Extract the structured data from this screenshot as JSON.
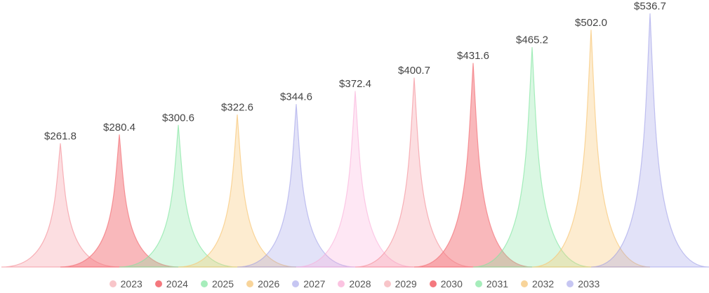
{
  "chart_data": {
    "type": "bar",
    "style": "pictorial-spike-overlapping-peaks",
    "title": "",
    "xlabel": "",
    "ylabel": "",
    "categories": [
      "2023",
      "2024",
      "2025",
      "2026",
      "2027",
      "2028",
      "2029",
      "2030",
      "2031",
      "2032",
      "2033"
    ],
    "values": [
      261.8,
      280.4,
      300.6,
      322.6,
      344.6,
      372.4,
      400.7,
      431.6,
      465.2,
      502.0,
      536.7
    ],
    "data_labels": [
      "$261.8",
      "$280.4",
      "$300.6",
      "$322.6",
      "$344.6",
      "$372.4",
      "$400.7",
      "$431.6",
      "$465.2",
      "$502.0",
      "$536.7"
    ],
    "value_prefix": "$",
    "ylim": [
      0,
      560
    ],
    "grid": false,
    "legend_position": "bottom",
    "legend_items": [
      "2023",
      "2024",
      "2025",
      "2026",
      "2027",
      "2028",
      "2029",
      "2030",
      "2031",
      "2032",
      "2033"
    ],
    "colors": {
      "background": "#ffffff",
      "label_text": "#454545",
      "legend_text": "#555555",
      "fills": [
        "rgba(244,143,152,0.29)",
        "rgba(243,121,127,0.53)",
        "rgba(130,230,160,0.30)",
        "rgba(248,200,120,0.35)",
        "rgba(150,150,230,0.28)",
        "rgba(250,170,215,0.28)",
        "rgba(244,143,152,0.29)",
        "rgba(243,121,127,0.53)",
        "rgba(130,230,160,0.30)",
        "rgba(248,200,120,0.35)",
        "rgba(150,150,230,0.28)"
      ],
      "strokes": [
        "rgba(244,143,152,0.65)",
        "rgba(243,121,127,0.77)",
        "rgba(130,230,160,0.68)",
        "rgba(248,200,120,0.72)",
        "rgba(150,150,230,0.55)",
        "rgba(250,170,215,0.60)",
        "rgba(244,143,152,0.65)",
        "rgba(243,121,127,0.77)",
        "rgba(130,230,160,0.68)",
        "rgba(248,200,120,0.72)",
        "rgba(150,150,230,0.55)"
      ],
      "legend_dots": [
        "#f8c5c9",
        "#f4787e",
        "#a6edbb",
        "#f8d49a",
        "#c6c6f2",
        "#fbc3e1",
        "#f8c5c9",
        "#f4787e",
        "#a6edbb",
        "#f8d49a",
        "#c6c6f2"
      ]
    }
  }
}
